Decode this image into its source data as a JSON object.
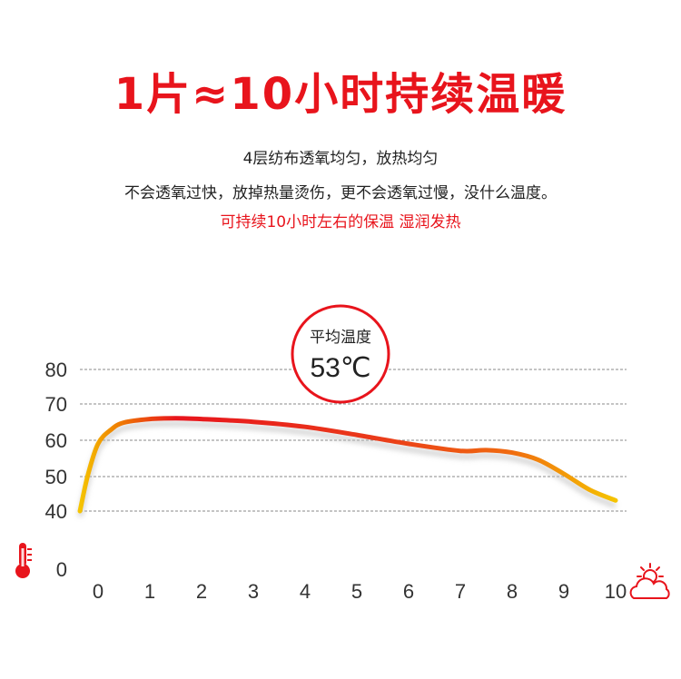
{
  "header": {
    "title": "1片≈10小时持续温暖",
    "line1": "4层纺布透氧均匀，放热均匀",
    "line2": "不会透氧过快，放掉热量烫伤，更不会透氧过慢，没什么温度。",
    "line3": "可持续10小时左右的保温 湿润发热"
  },
  "badge": {
    "label": "平均温度",
    "value": "53℃"
  },
  "colors": {
    "accent": "#e8141c",
    "curve_start": "#f5c400",
    "curve_mid": "#e8141c"
  },
  "icons": {
    "y_axis": "thermometer-icon",
    "x_axis": "sun-cloud-icon"
  },
  "chart_data": {
    "type": "line",
    "title": "",
    "xlabel": "",
    "ylabel": "",
    "x_ticks": [
      0,
      1,
      2,
      3,
      4,
      5,
      6,
      7,
      8,
      9,
      10
    ],
    "y_ticks": [
      0,
      40,
      50,
      60,
      70,
      80
    ],
    "grid": true,
    "xlim": [
      0,
      10
    ],
    "series": [
      {
        "x": [
          -0.35,
          -0.2,
          0,
          0.25,
          0.5,
          1,
          1.5,
          2,
          3,
          4,
          5,
          6,
          7,
          7.5,
          8,
          8.5,
          9,
          9.5,
          10
        ],
        "y": [
          40,
          50,
          59,
          63,
          65,
          66,
          66.2,
          66,
          65.2,
          63.8,
          61.5,
          59,
          57,
          57.2,
          56.5,
          54.5,
          50.5,
          46,
          43
        ]
      }
    ]
  }
}
